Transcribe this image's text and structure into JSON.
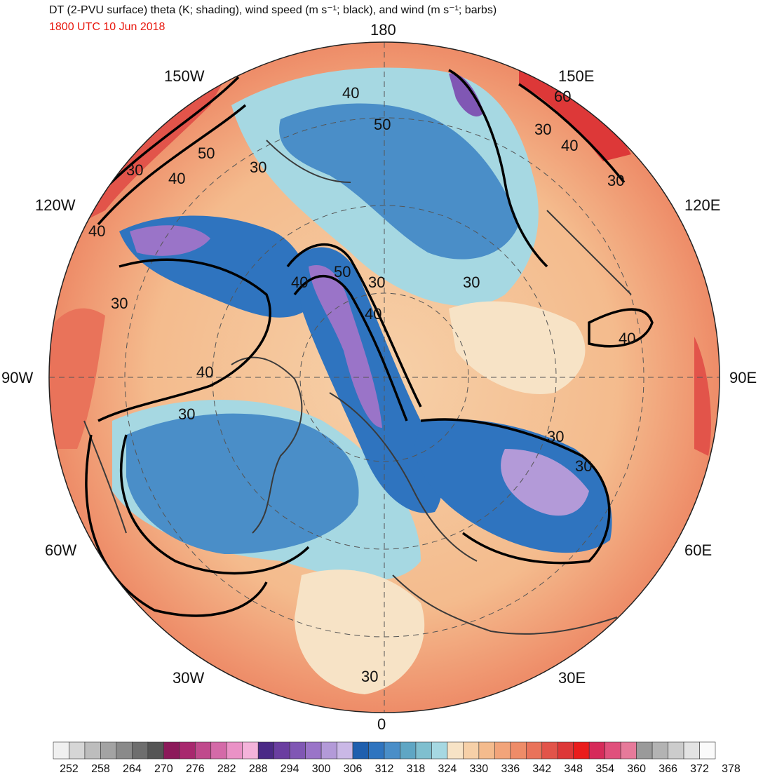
{
  "header": {
    "title": "DT (2-PVU surface) theta (K; shading), wind speed (m s⁻¹; black), and wind (m s⁻¹; barbs)",
    "datetime": "1800 UTC 10 Jun 2018",
    "title_color": "#111111",
    "datetime_color": "#e8160c"
  },
  "map": {
    "projection": "north-polar-stereographic",
    "longitude_labels": {
      "top": "180",
      "bottom": "0",
      "left": "90W",
      "right": "90E",
      "upper_left_1": "150W",
      "upper_left_2": "120W",
      "lower_left_1": "60W",
      "lower_left_2": "30W",
      "upper_right_1": "150E",
      "upper_right_2": "120E",
      "lower_right_1": "60E",
      "lower_right_2": "30E"
    },
    "contour_labels": [
      "30",
      "40",
      "50",
      "60",
      "30",
      "40",
      "50",
      "30",
      "40",
      "30",
      "40",
      "30",
      "40",
      "50",
      "30",
      "40",
      "30",
      "40",
      "30",
      "30",
      "30",
      "40",
      "30"
    ],
    "colors": {
      "warm": "#f08a66",
      "very_warm": "#e8373a",
      "cool": "#2f6fb8",
      "mid_blue": "#4b98c6",
      "light_blue": "#a9dce6",
      "tan": "#f8d8b4",
      "purple": "#9a74c8",
      "contour": "#000000",
      "coast": "#3a3a3a"
    }
  },
  "colorbar": {
    "labels": [
      "252",
      "258",
      "264",
      "270",
      "276",
      "282",
      "288",
      "294",
      "300",
      "306",
      "312",
      "318",
      "324",
      "330",
      "336",
      "342",
      "348",
      "354",
      "360",
      "366",
      "372",
      "378"
    ],
    "colors": [
      "#f0f0f0",
      "#d6d6d6",
      "#bdbdbd",
      "#a3a3a3",
      "#8a8a8a",
      "#6e6e6e",
      "#555555",
      "#8c1a5a",
      "#a8286e",
      "#c04a8c",
      "#d46aa8",
      "#ea92c6",
      "#f4b3da",
      "#4b2a86",
      "#6a3ea0",
      "#8057b4",
      "#9a74c8",
      "#b39ad8",
      "#cab8e6",
      "#1f5fae",
      "#2f74bf",
      "#4a8ec8",
      "#5fa6c4",
      "#7fbfcf",
      "#a6d8e2",
      "#f7e3c6",
      "#f6d0a8",
      "#f4bb8d",
      "#f2a47a",
      "#ee8c68",
      "#e9735a",
      "#e2544a",
      "#dd3838",
      "#ea1c1c",
      "#d62b5a",
      "#e0507c",
      "#e67a9a",
      "#9a9a9a",
      "#b3b3b3",
      "#cccccc",
      "#e3e3e3",
      "#fafafa"
    ]
  }
}
